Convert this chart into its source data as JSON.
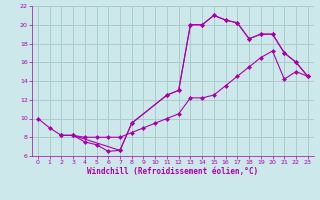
{
  "background_color": "#cce8ea",
  "grid_color": "#aacccc",
  "line_color": "#aa00aa",
  "marker": "D",
  "marker_size": 2.5,
  "xlabel": "Windchill (Refroidissement éolien,°C)",
  "xlim": [
    -0.5,
    23.5
  ],
  "ylim": [
    6,
    22
  ],
  "yticks": [
    6,
    8,
    10,
    12,
    14,
    16,
    18,
    20,
    22
  ],
  "xticks": [
    0,
    1,
    2,
    3,
    4,
    5,
    6,
    7,
    8,
    9,
    10,
    11,
    12,
    13,
    14,
    15,
    16,
    17,
    18,
    19,
    20,
    21,
    22,
    23
  ],
  "curve1_x": [
    0,
    1,
    2,
    3,
    4,
    5,
    6,
    7,
    8,
    11,
    12,
    13,
    14,
    15,
    16,
    17,
    18,
    19,
    20,
    21,
    22,
    23
  ],
  "curve1_y": [
    10,
    9,
    8.2,
    8.2,
    7.5,
    7.2,
    6.5,
    6.6,
    9.5,
    12.5,
    13,
    20,
    20,
    21,
    20.5,
    20.2,
    18.5,
    19,
    19,
    17,
    16,
    14.5
  ],
  "curve2_x": [
    2,
    3,
    4,
    5,
    6,
    7,
    8,
    9,
    10,
    11,
    12,
    13,
    14,
    15,
    16,
    17,
    18,
    19,
    20,
    21,
    22,
    23
  ],
  "curve2_y": [
    8.2,
    8.2,
    8.0,
    8.0,
    8.0,
    8.0,
    8.5,
    9.0,
    9.5,
    10.0,
    10.5,
    12.2,
    12.2,
    12.5,
    13.5,
    14.5,
    15.5,
    16.5,
    17.2,
    14.2,
    15.0,
    14.5
  ],
  "curve3_x": [
    2,
    3,
    7,
    8,
    11,
    12,
    13,
    14,
    15,
    16,
    17,
    18,
    19,
    20,
    21,
    22,
    23
  ],
  "curve3_y": [
    8.2,
    8.2,
    6.6,
    9.5,
    12.5,
    13,
    20,
    20,
    21,
    20.5,
    20.2,
    18.5,
    19,
    19,
    17,
    16,
    14.5
  ]
}
